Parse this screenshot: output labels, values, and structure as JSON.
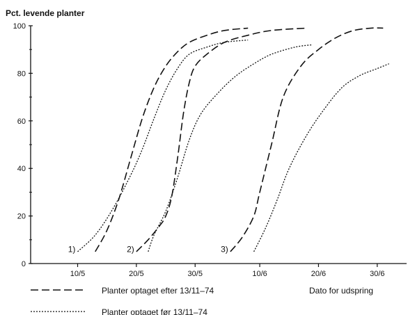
{
  "chart_data": {
    "type": "line",
    "ylabel": "Pct. levende planter",
    "xlabel": "Dato for udspring",
    "xlim": [
      "2 May",
      "5 Jul"
    ],
    "ylim": [
      0,
      100
    ],
    "x_ticks": [
      {
        "date": "10 May",
        "label": "10/5"
      },
      {
        "date": "20 May",
        "label": "20/5"
      },
      {
        "date": "30 May",
        "label": "30/5"
      },
      {
        "date": "10 Jun",
        "label": "10/6"
      },
      {
        "date": "20 Jun",
        "label": "20/6"
      },
      {
        "date": "30 Jun",
        "label": "30/6"
      }
    ],
    "y_ticks": [
      0,
      20,
      40,
      60,
      80,
      100
    ],
    "annotations": [
      {
        "text": "1)",
        "date": "9 May",
        "y": 6
      },
      {
        "text": "2)",
        "date": "19 May",
        "y": 6
      },
      {
        "text": "3)",
        "date": "4 Jun",
        "y": 6
      }
    ],
    "legend": {
      "placement": "bottom-left",
      "entries": [
        {
          "style": "dashed",
          "label": "Planter optaget efter 13/11–74"
        },
        {
          "style": "dotted",
          "label": "Planter optaget før 13/11–74"
        }
      ]
    },
    "series": [
      {
        "group": "1)",
        "style": "dashed",
        "points": [
          [
            "13 May",
            5
          ],
          [
            "15 May",
            14
          ],
          [
            "17 May",
            27
          ],
          [
            "19 May",
            44
          ],
          [
            "21 May",
            61
          ],
          [
            "23 May",
            74
          ],
          [
            "25 May",
            83
          ],
          [
            "27 May",
            89
          ],
          [
            "29 May",
            93
          ],
          [
            "1 Jun",
            96
          ],
          [
            "4 Jun",
            98
          ],
          [
            "8 Jun",
            99
          ]
        ]
      },
      {
        "group": "1)",
        "style": "dotted",
        "points": [
          [
            "10 May",
            5
          ],
          [
            "13 May",
            12
          ],
          [
            "16 May",
            23
          ],
          [
            "19 May",
            37
          ],
          [
            "21 May",
            48
          ],
          [
            "23 May",
            61
          ],
          [
            "25 May",
            73
          ],
          [
            "27 May",
            82
          ],
          [
            "29 May",
            88
          ],
          [
            "1 Jun",
            91
          ],
          [
            "4 Jun",
            93
          ],
          [
            "8 Jun",
            94
          ]
        ]
      },
      {
        "group": "2)",
        "style": "dashed",
        "points": [
          [
            "20 May",
            5
          ],
          [
            "22 May",
            10
          ],
          [
            "24 May",
            16
          ],
          [
            "25 May",
            20
          ],
          [
            "26 May",
            28
          ],
          [
            "27 May",
            44
          ],
          [
            "28 May",
            63
          ],
          [
            "29 May",
            76
          ],
          [
            "30 May",
            83
          ],
          [
            "1 Jun",
            88
          ],
          [
            "4 Jun",
            93
          ],
          [
            "8 Jun",
            96
          ],
          [
            "12 Jun",
            98
          ],
          [
            "18 Jun",
            99
          ]
        ]
      },
      {
        "group": "2)",
        "style": "dotted",
        "points": [
          [
            "22 May",
            5
          ],
          [
            "23 May",
            12
          ],
          [
            "25 May",
            22
          ],
          [
            "27 May",
            36
          ],
          [
            "29 May",
            52
          ],
          [
            "31 May",
            63
          ],
          [
            "3 Jun",
            72
          ],
          [
            "6 Jun",
            79
          ],
          [
            "9 Jun",
            84
          ],
          [
            "12 Jun",
            88
          ],
          [
            "16 Jun",
            91
          ],
          [
            "19 Jun",
            92
          ]
        ]
      },
      {
        "group": "3)",
        "style": "dashed",
        "points": [
          [
            "5 Jun",
            5
          ],
          [
            "7 Jun",
            11
          ],
          [
            "9 Jun",
            20
          ],
          [
            "10 Jun",
            30
          ],
          [
            "12 Jun",
            50
          ],
          [
            "14 Jun",
            70
          ],
          [
            "17 Jun",
            83
          ],
          [
            "20 Jun",
            90
          ],
          [
            "23 Jun",
            95
          ],
          [
            "26 Jun",
            98
          ],
          [
            "29 Jun",
            99
          ],
          [
            "1 Jul",
            99
          ]
        ]
      },
      {
        "group": "3)",
        "style": "dotted",
        "points": [
          [
            "9 Jun",
            5
          ],
          [
            "11 Jun",
            15
          ],
          [
            "13 Jun",
            27
          ],
          [
            "15 Jun",
            40
          ],
          [
            "18 Jun",
            54
          ],
          [
            "21 Jun",
            65
          ],
          [
            "24 Jun",
            74
          ],
          [
            "27 Jun",
            79
          ],
          [
            "30 Jun",
            82
          ],
          [
            "2 Jul",
            84
          ]
        ]
      }
    ]
  }
}
